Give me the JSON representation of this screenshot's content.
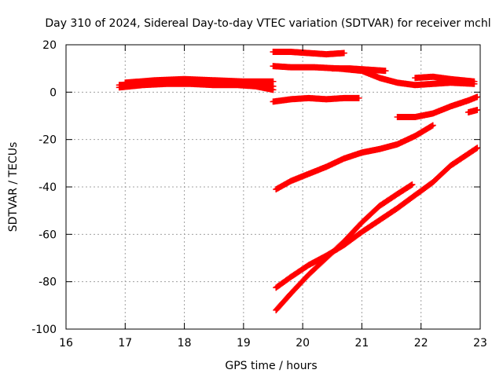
{
  "chart_data": {
    "type": "scatter",
    "title": "Day 310 of 2024, Sidereal Day-to-day VTEC variation (SDTVAR) for receiver mchl",
    "xlabel": "GPS time / hours",
    "ylabel": "SDTVAR / TECUs",
    "xlim": [
      16,
      23
    ],
    "ylim": [
      -100,
      20
    ],
    "xticks": [
      16,
      17,
      18,
      19,
      20,
      21,
      22,
      23
    ],
    "yticks": [
      20,
      0,
      -20,
      -40,
      -60,
      -80,
      -100
    ],
    "grid": true,
    "marker": "plus",
    "color": "#ff0000",
    "series": [
      {
        "x": [
          16.9,
          17.2,
          17.5,
          17.8,
          18.1,
          18.4,
          18.7,
          19.0,
          19.3,
          19.5
        ],
        "y": [
          3,
          3.5,
          4,
          4.5,
          4.5,
          4,
          3.5,
          3,
          3,
          2.5
        ]
      },
      {
        "x": [
          16.9,
          17.3,
          17.7,
          18.1,
          18.5,
          18.9,
          19.2,
          19.5
        ],
        "y": [
          2,
          3,
          3.5,
          3.5,
          3,
          3,
          2.5,
          1
        ]
      },
      {
        "x": [
          17.0,
          17.5,
          18.0,
          18.5,
          19.0,
          19.5
        ],
        "y": [
          4,
          5,
          5.5,
          5,
          4.5,
          4.5
        ]
      },
      {
        "x": [
          19.5,
          19.8,
          20.1,
          20.4,
          20.7
        ],
        "y": [
          17,
          17,
          16.5,
          16,
          16.5
        ]
      },
      {
        "x": [
          19.5,
          19.8,
          20.2,
          20.6,
          21.0,
          21.3,
          21.6,
          21.9,
          22.2,
          22.5,
          22.9
        ],
        "y": [
          11,
          10.5,
          10.5,
          10,
          9,
          6,
          4,
          3,
          3.5,
          4,
          3.5
        ]
      },
      {
        "x": [
          20.5,
          20.8,
          21.1,
          21.4
        ],
        "y": [
          10,
          10,
          9.5,
          9
        ]
      },
      {
        "x": [
          21.9,
          22.2,
          22.5,
          22.9
        ],
        "y": [
          6,
          6.5,
          5.5,
          4.5
        ]
      },
      {
        "x": [
          19.5,
          19.8,
          20.1,
          20.4,
          20.7,
          20.95
        ],
        "y": [
          -4,
          -3,
          -2.5,
          -3,
          -2.5,
          -2.5
        ]
      },
      {
        "x": [
          21.6,
          21.9,
          22.2,
          22.5,
          22.8,
          22.95
        ],
        "y": [
          -10.5,
          -10.5,
          -9,
          -6,
          -3.5,
          -2
        ]
      },
      {
        "x": [
          22.8,
          22.95
        ],
        "y": [
          -8.5,
          -7.5
        ]
      },
      {
        "x": [
          19.55,
          19.8,
          20.1,
          20.4,
          20.7,
          21.0,
          21.3,
          21.6,
          21.9,
          22.2
        ],
        "y": [
          -41,
          -37.5,
          -34.5,
          -31.5,
          -28,
          -25.5,
          -24,
          -22,
          -18.5,
          -14
        ]
      },
      {
        "x": [
          19.55,
          19.8,
          20.1,
          20.4,
          20.7,
          21.0,
          21.3,
          21.6,
          21.85
        ],
        "y": [
          -92,
          -85,
          -77,
          -70,
          -63,
          -55,
          -48,
          -43,
          -39
        ]
      },
      {
        "x": [
          19.55,
          19.8,
          20.1,
          20.4,
          20.7,
          21.0,
          21.3,
          21.6,
          21.9,
          22.2,
          22.5,
          22.95
        ],
        "y": [
          -82.5,
          -78,
          -73,
          -69,
          -64.5,
          -59,
          -54,
          -49,
          -43.5,
          -38,
          -31,
          -23.5
        ]
      }
    ]
  }
}
